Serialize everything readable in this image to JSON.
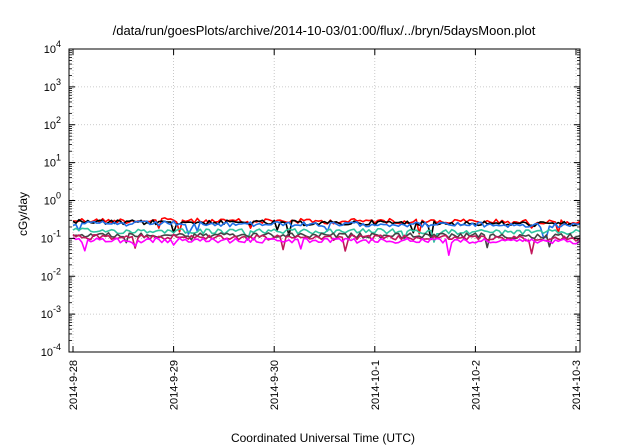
{
  "chart_data": {
    "type": "line",
    "title": "/data/run/goesPlots/archive/2014-10-03/01:00/flux/../bryn/5daysMoon.plot",
    "xlabel": "Coordinated Universal Time (UTC)",
    "ylabel": "cGy/day",
    "y_scale": "log",
    "ylim": [
      0.0001,
      10000
    ],
    "y_ticks": [
      {
        "value": 0.0001,
        "base": "10",
        "exp": "-4"
      },
      {
        "value": 0.001,
        "base": "10",
        "exp": "-3"
      },
      {
        "value": 0.01,
        "base": "10",
        "exp": "-2"
      },
      {
        "value": 0.1,
        "base": "10",
        "exp": "-1"
      },
      {
        "value": 1,
        "base": "10",
        "exp": "0"
      },
      {
        "value": 10,
        "base": "10",
        "exp": "1"
      },
      {
        "value": 100,
        "base": "10",
        "exp": "2"
      },
      {
        "value": 1000,
        "base": "10",
        "exp": "3"
      },
      {
        "value": 10000,
        "base": "10",
        "exp": "4"
      }
    ],
    "x_ticks": [
      "2014-9-28",
      "2014-9-29",
      "2014-9-30",
      "2014-10-1",
      "2014-10-2",
      "2014-10-3"
    ],
    "xlim": [
      "2014-09-28 00:00",
      "2014-10-03 01:00"
    ],
    "grid": true,
    "series": [
      {
        "color": "#ff0000",
        "x": [
          "2014-09-28 00:00",
          "2014-09-28 12:00",
          "2014-09-29 00:00",
          "2014-09-29 12:00",
          "2014-09-30 00:00",
          "2014-09-30 12:00",
          "2014-10-01 00:00",
          "2014-10-01 12:00",
          "2014-10-02 00:00",
          "2014-10-02 12:00",
          "2014-10-03 00:00",
          "2014-10-03 01:00"
        ],
        "values": [
          0.3,
          0.29,
          0.3,
          0.28,
          0.29,
          0.28,
          0.29,
          0.28,
          0.28,
          0.27,
          0.27,
          0.28
        ]
      },
      {
        "color": "#000000",
        "x": [
          "2014-09-28 00:00",
          "2014-09-28 12:00",
          "2014-09-29 00:00",
          "2014-09-29 12:00",
          "2014-09-30 00:00",
          "2014-09-30 12:00",
          "2014-10-01 00:00",
          "2014-10-01 12:00",
          "2014-10-02 00:00",
          "2014-10-02 12:00",
          "2014-10-03 00:00",
          "2014-10-03 01:00"
        ],
        "values": [
          0.27,
          0.26,
          0.27,
          0.26,
          0.26,
          0.25,
          0.26,
          0.25,
          0.25,
          0.24,
          0.24,
          0.25
        ]
      },
      {
        "color": "#1e6fe6",
        "x": [
          "2014-09-28 00:00",
          "2014-09-28 12:00",
          "2014-09-29 00:00",
          "2014-09-29 12:00",
          "2014-09-30 00:00",
          "2014-09-30 12:00",
          "2014-10-01 00:00",
          "2014-10-01 12:00",
          "2014-10-02 00:00",
          "2014-10-02 12:00",
          "2014-10-03 00:00",
          "2014-10-03 01:00"
        ],
        "values": [
          0.25,
          0.24,
          0.25,
          0.23,
          0.24,
          0.23,
          0.24,
          0.23,
          0.23,
          0.22,
          0.22,
          0.23
        ]
      },
      {
        "color": "#2ec4a0",
        "x": [
          "2014-09-28 00:00",
          "2014-09-28 12:00",
          "2014-09-29 00:00",
          "2014-09-29 12:00",
          "2014-09-30 00:00",
          "2014-09-30 12:00",
          "2014-10-01 00:00",
          "2014-10-01 12:00",
          "2014-10-02 00:00",
          "2014-10-02 12:00",
          "2014-10-03 00:00",
          "2014-10-03 01:00"
        ],
        "values": [
          0.16,
          0.155,
          0.16,
          0.15,
          0.155,
          0.15,
          0.155,
          0.15,
          0.15,
          0.145,
          0.145,
          0.15
        ]
      },
      {
        "color": "#444444",
        "x": [
          "2014-09-28 00:00",
          "2014-09-28 12:00",
          "2014-09-29 00:00",
          "2014-09-29 12:00",
          "2014-09-30 00:00",
          "2014-09-30 12:00",
          "2014-10-01 00:00",
          "2014-10-01 12:00",
          "2014-10-02 00:00",
          "2014-10-02 12:00",
          "2014-10-03 00:00",
          "2014-10-03 01:00"
        ],
        "values": [
          0.125,
          0.12,
          0.125,
          0.12,
          0.12,
          0.118,
          0.12,
          0.118,
          0.118,
          0.115,
          0.115,
          0.118
        ]
      },
      {
        "color": "#c2185b",
        "x": [
          "2014-09-28 00:00",
          "2014-09-28 12:00",
          "2014-09-29 00:00",
          "2014-09-29 12:00",
          "2014-09-30 00:00",
          "2014-09-30 12:00",
          "2014-10-01 00:00",
          "2014-10-01 12:00",
          "2014-10-02 00:00",
          "2014-10-02 12:00",
          "2014-10-03 00:00",
          "2014-10-03 01:00"
        ],
        "values": [
          0.11,
          0.105,
          0.11,
          0.105,
          0.105,
          0.103,
          0.105,
          0.103,
          0.103,
          0.1,
          0.1,
          0.103
        ]
      },
      {
        "color": "#ff00ff",
        "x": [
          "2014-09-28 00:00",
          "2014-09-28 12:00",
          "2014-09-29 00:00",
          "2014-09-29 12:00",
          "2014-09-30 00:00",
          "2014-09-30 12:00",
          "2014-10-01 00:00",
          "2014-10-01 12:00",
          "2014-10-02 00:00",
          "2014-10-02 12:00",
          "2014-10-03 00:00",
          "2014-10-03 01:00"
        ],
        "values": [
          0.09,
          0.088,
          0.09,
          0.087,
          0.088,
          0.086,
          0.087,
          0.086,
          0.085,
          0.084,
          0.084,
          0.086
        ]
      }
    ]
  }
}
